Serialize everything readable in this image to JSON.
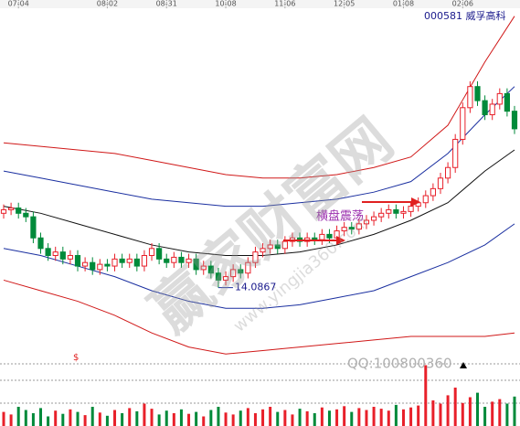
{
  "chart_data": {
    "type": "candlestick",
    "stock_label": "000581 威孚高科",
    "annotation": "横盘震荡",
    "marker": "$",
    "watermarks": [
      "赢家财富网",
      "www.yingjia360.com",
      "QQ:100800360"
    ],
    "xlim": [
      0,
      69
    ],
    "ylim": [
      12,
      22
    ],
    "xticks": [
      {
        "value": 2,
        "label": "07-04"
      },
      {
        "value": 14,
        "label": "08-02"
      },
      {
        "value": 22,
        "label": "08-31"
      },
      {
        "value": 30,
        "label": "10-08"
      },
      {
        "value": 38,
        "label": "11-06"
      },
      {
        "value": 46,
        "label": "12-05"
      },
      {
        "value": 54,
        "label": "01-08"
      },
      {
        "value": 62,
        "label": "02-06"
      }
    ],
    "up_color": "#e8202a",
    "down_color": "#008a3a",
    "candles": {
      "open": [
        16.2,
        16.3,
        16.35,
        16.2,
        16.1,
        15.5,
        15.2,
        15.0,
        15.1,
        14.9,
        15.0,
        14.7,
        14.8,
        14.6,
        14.75,
        14.7,
        14.9,
        14.8,
        14.9,
        14.7,
        15.0,
        15.2,
        14.9,
        14.8,
        14.95,
        14.8,
        14.9,
        14.6,
        14.7,
        14.5,
        14.3,
        14.4,
        14.6,
        14.5,
        14.8,
        15.1,
        15.2,
        15.3,
        15.2,
        15.4,
        15.5,
        15.4,
        15.5,
        15.45,
        15.6,
        15.5,
        15.7,
        15.8,
        15.75,
        15.9,
        16.0,
        16.1,
        16.2,
        16.3,
        16.2,
        16.25,
        16.4,
        16.5,
        16.7,
        16.9,
        17.2,
        17.5,
        18.3,
        19.2,
        19.8,
        19.4,
        19.0,
        19.3,
        19.6,
        19.1
      ],
      "high": [
        16.45,
        16.5,
        16.5,
        16.35,
        16.25,
        15.65,
        15.35,
        15.25,
        15.25,
        15.15,
        15.15,
        14.95,
        14.95,
        14.9,
        14.9,
        15.05,
        15.05,
        15.05,
        15.05,
        15.15,
        15.35,
        15.35,
        15.05,
        15.1,
        15.1,
        15.05,
        15.05,
        14.85,
        14.85,
        14.65,
        14.55,
        14.75,
        14.75,
        14.95,
        15.25,
        15.35,
        15.45,
        15.45,
        15.55,
        15.65,
        15.65,
        15.65,
        15.65,
        15.75,
        15.75,
        15.85,
        15.95,
        15.95,
        16.05,
        16.15,
        16.25,
        16.35,
        16.45,
        16.45,
        16.4,
        16.55,
        16.65,
        16.85,
        17.05,
        17.35,
        17.65,
        18.45,
        19.35,
        19.95,
        19.95,
        19.55,
        19.45,
        19.75,
        19.75,
        19.25
      ],
      "low": [
        16.05,
        16.15,
        16.05,
        15.95,
        15.35,
        15.05,
        14.85,
        14.85,
        14.75,
        14.75,
        14.55,
        14.55,
        14.45,
        14.45,
        14.55,
        14.55,
        14.65,
        14.65,
        14.55,
        14.55,
        14.85,
        14.75,
        14.65,
        14.65,
        14.65,
        14.65,
        14.45,
        14.45,
        14.35,
        14.0867,
        14.15,
        14.25,
        14.35,
        14.35,
        14.65,
        14.95,
        15.05,
        15.05,
        15.05,
        15.25,
        15.25,
        15.25,
        15.3,
        15.3,
        15.35,
        15.35,
        15.55,
        15.6,
        15.6,
        15.75,
        15.85,
        15.95,
        16.05,
        16.05,
        16.05,
        16.1,
        16.25,
        16.35,
        16.55,
        16.75,
        17.05,
        17.35,
        18.15,
        19.05,
        19.25,
        18.85,
        18.85,
        19.15,
        18.95,
        18.45
      ],
      "close": [
        16.3,
        16.35,
        16.2,
        16.1,
        15.5,
        15.2,
        15.0,
        15.1,
        14.9,
        15.0,
        14.7,
        14.8,
        14.6,
        14.75,
        14.7,
        14.9,
        14.8,
        14.9,
        14.7,
        15.0,
        15.2,
        14.9,
        14.8,
        14.95,
        14.8,
        14.9,
        14.6,
        14.7,
        14.5,
        14.3,
        14.4,
        14.6,
        14.5,
        14.8,
        15.1,
        15.2,
        15.3,
        15.2,
        15.4,
        15.5,
        15.4,
        15.5,
        15.45,
        15.6,
        15.5,
        15.7,
        15.8,
        15.75,
        15.9,
        16.0,
        16.1,
        16.2,
        16.3,
        16.2,
        16.25,
        16.4,
        16.5,
        16.7,
        16.9,
        17.2,
        17.5,
        18.3,
        19.2,
        19.8,
        19.4,
        19.0,
        19.3,
        19.6,
        19.1,
        18.6
      ]
    },
    "volume": {
      "ylim": [
        0,
        100
      ],
      "values": [
        22,
        18,
        30,
        25,
        20,
        28,
        15,
        24,
        19,
        26,
        22,
        17,
        30,
        21,
        16,
        25,
        20,
        28,
        23,
        35,
        27,
        18,
        24,
        20,
        26,
        19,
        22,
        15,
        25,
        30,
        21,
        18,
        24,
        28,
        20,
        26,
        30,
        22,
        25,
        18,
        27,
        23,
        20,
        29,
        24,
        26,
        31,
        22,
        28,
        25,
        30,
        27,
        24,
        33,
        26,
        29,
        32,
        95,
        40,
        35,
        48,
        60,
        36,
        45,
        52,
        30,
        38,
        42,
        35,
        46
      ]
    },
    "bands": {
      "x": [
        0,
        5,
        10,
        15,
        20,
        25,
        30,
        35,
        40,
        45,
        50,
        55,
        60,
        65,
        69
      ],
      "series": [
        {
          "color": "#d01818",
          "values": [
            18.2,
            18.1,
            18.0,
            17.9,
            17.7,
            17.5,
            17.3,
            17.2,
            17.2,
            17.3,
            17.5,
            17.8,
            18.7,
            20.5,
            21.8
          ]
        },
        {
          "color": "#1a2fa0",
          "values": [
            17.4,
            17.2,
            17.0,
            16.8,
            16.6,
            16.5,
            16.4,
            16.4,
            16.5,
            16.6,
            16.8,
            17.1,
            17.9,
            19.0,
            19.8
          ]
        },
        {
          "color": "#111111",
          "values": [
            16.4,
            16.2,
            15.9,
            15.6,
            15.3,
            15.1,
            15.0,
            15.0,
            15.1,
            15.3,
            15.6,
            16.0,
            16.5,
            17.4,
            18.0
          ]
        },
        {
          "color": "#1a2fa0",
          "values": [
            15.2,
            15.0,
            14.7,
            14.4,
            14.0,
            13.7,
            13.5,
            13.5,
            13.6,
            13.8,
            14.0,
            14.4,
            14.8,
            15.3,
            15.9
          ]
        },
        {
          "color": "#d01818",
          "values": [
            14.3,
            14.0,
            13.7,
            13.3,
            12.8,
            12.4,
            12.2,
            12.3,
            12.4,
            12.5,
            12.6,
            12.7,
            12.7,
            12.7,
            12.8
          ]
        }
      ]
    }
  }
}
